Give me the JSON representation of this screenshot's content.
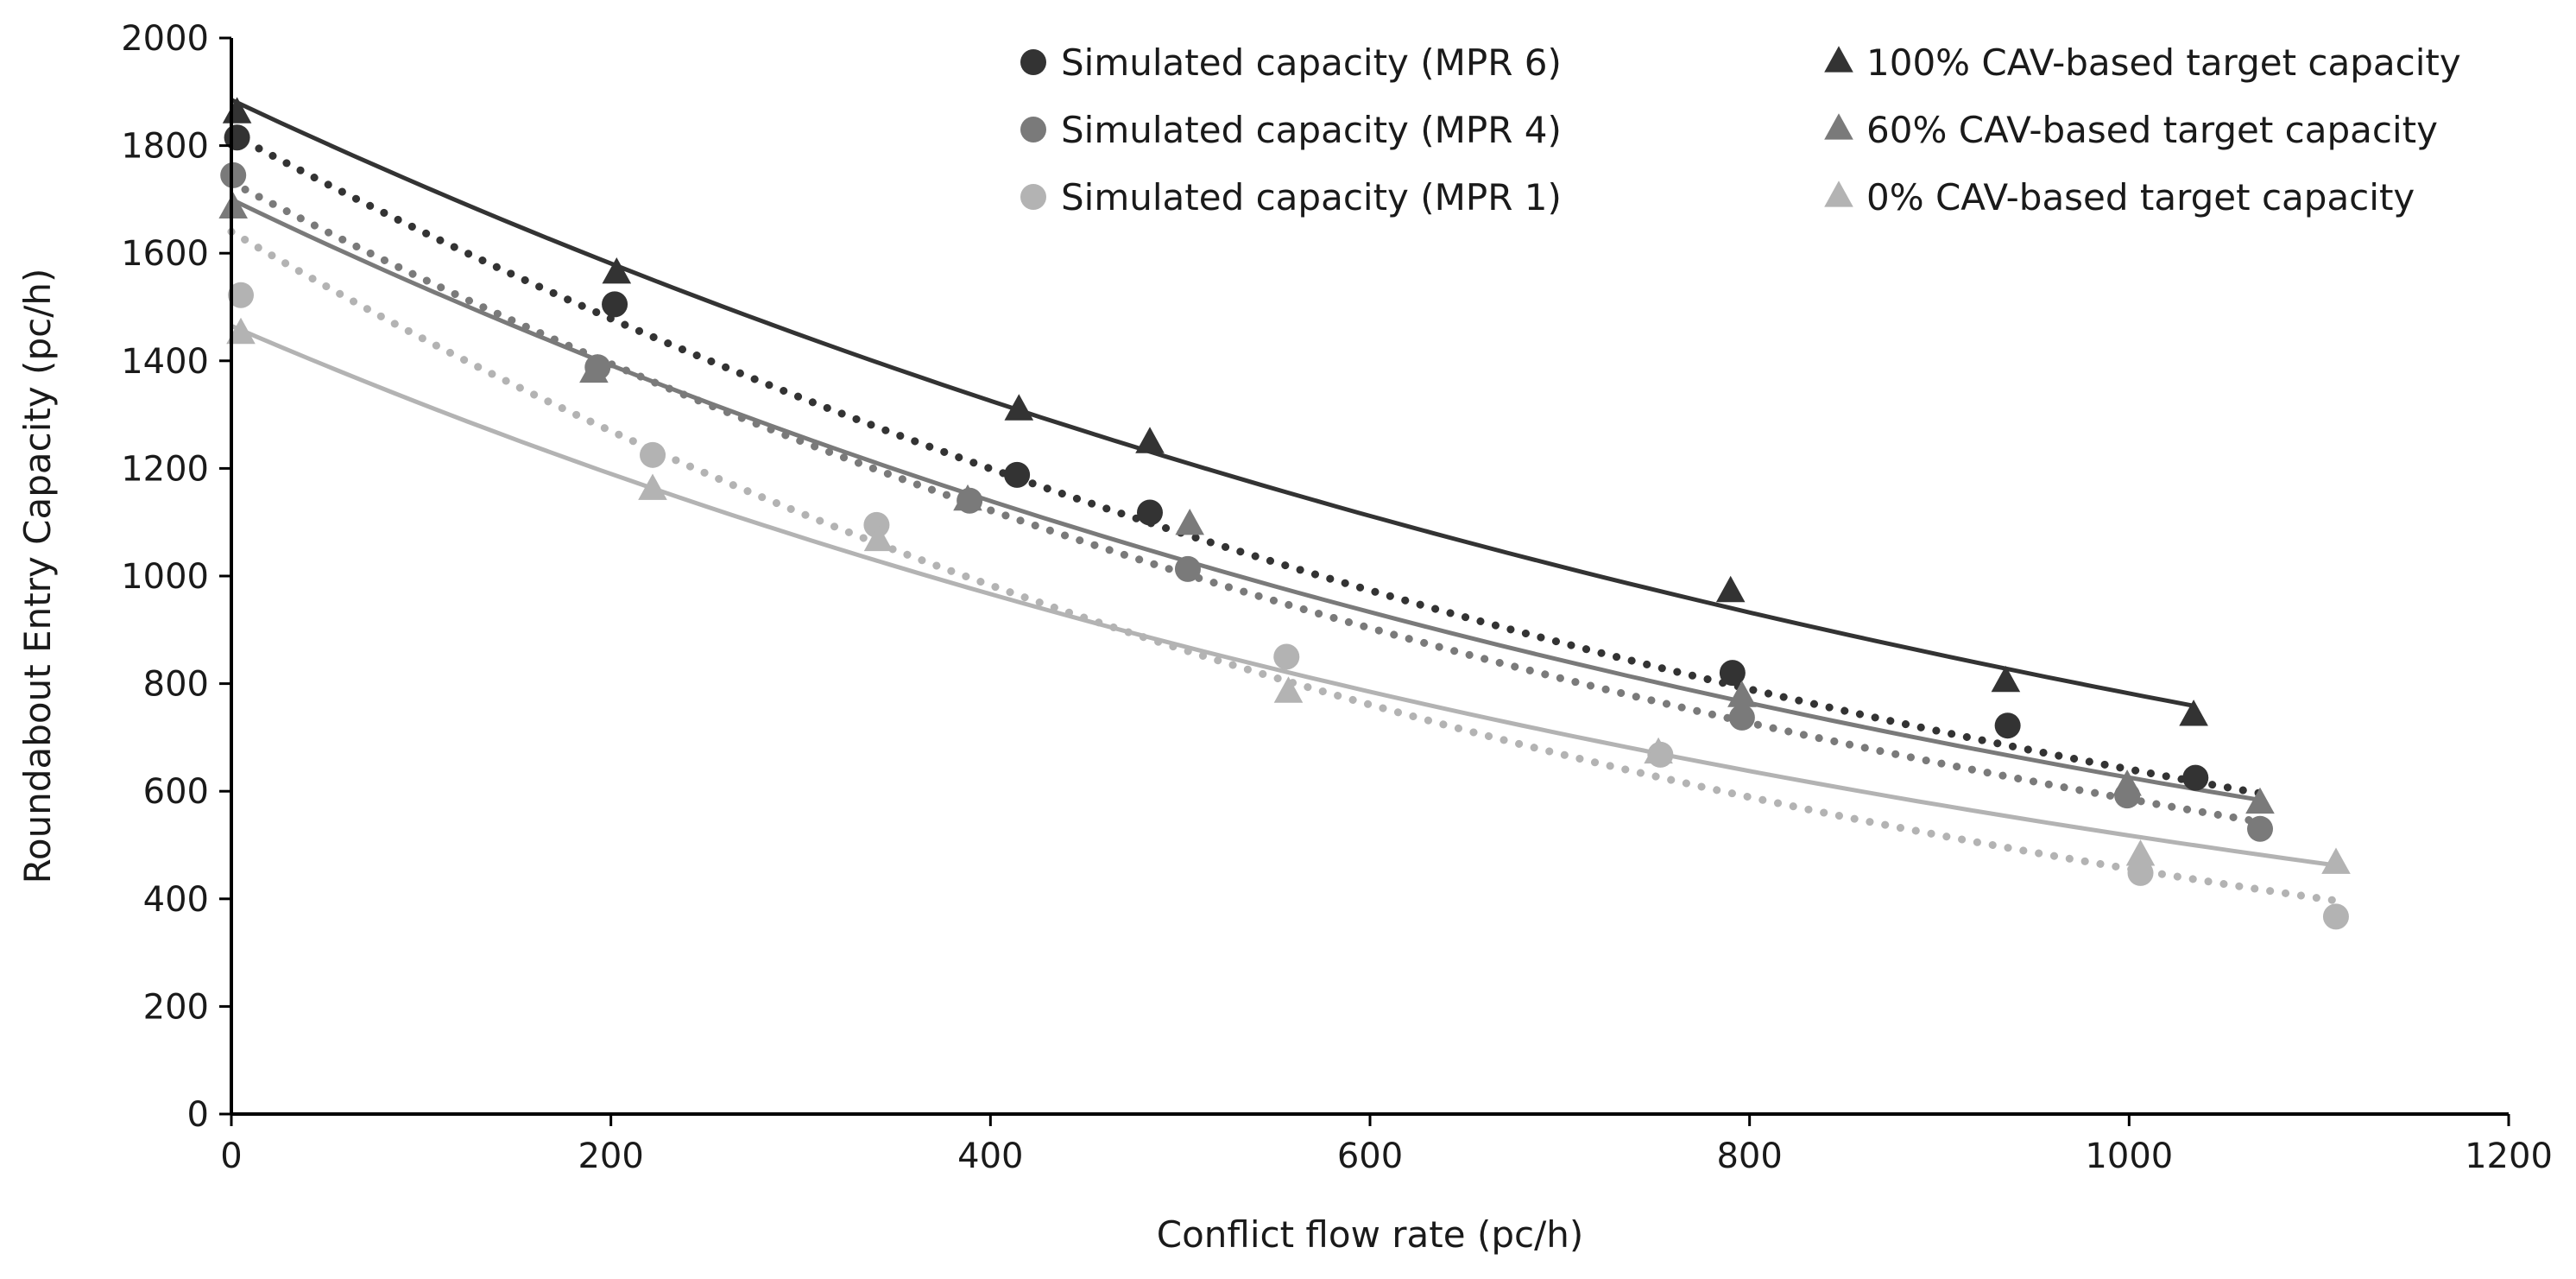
{
  "chart_data": {
    "type": "scatter",
    "title": "",
    "xlabel": "Conflict flow rate (pc/h)",
    "ylabel": "Roundabout Entry Capacity (pc/h)",
    "xlim": [
      0,
      1200
    ],
    "ylim": [
      0,
      2000
    ],
    "xticks": [
      0,
      200,
      400,
      600,
      800,
      1000,
      1200
    ],
    "yticks": [
      0,
      200,
      400,
      600,
      800,
      1000,
      1200,
      1400,
      1600,
      1800,
      2000
    ],
    "grid": false,
    "legend_position": "top-right",
    "series": [
      {
        "name": "Simulated capacity (MPR 6)",
        "marker": "circle",
        "color": "#333333",
        "points": [
          [
            3,
            1815
          ],
          [
            202,
            1505
          ],
          [
            414,
            1188
          ],
          [
            484,
            1118
          ],
          [
            791,
            820
          ],
          [
            936,
            722
          ],
          [
            1035,
            625
          ]
        ],
        "trend": {
          "style": "dotted",
          "a": 1822,
          "b": 0.001045,
          "x0": 0,
          "x1": 1070
        }
      },
      {
        "name": "Simulated capacity (MPR 4)",
        "marker": "circle",
        "color": "#7a7a7a",
        "points": [
          [
            1,
            1745
          ],
          [
            193,
            1388
          ],
          [
            389,
            1140
          ],
          [
            504,
            1013
          ],
          [
            796,
            737
          ],
          [
            999,
            592
          ],
          [
            1069,
            530
          ]
        ],
        "trend": {
          "style": "dotted",
          "a": 1732,
          "b": 0.001085,
          "x0": 0,
          "x1": 1070
        }
      },
      {
        "name": "Simulated capacity (MPR 1)",
        "marker": "circle",
        "color": "#b3b3b3",
        "points": [
          [
            5,
            1522
          ],
          [
            222,
            1225
          ],
          [
            340,
            1095
          ],
          [
            556,
            850
          ],
          [
            753,
            668
          ],
          [
            1006,
            448
          ],
          [
            1109,
            367
          ]
        ],
        "trend": {
          "style": "dotted",
          "a": 1640,
          "b": 0.00128,
          "x0": 0,
          "x1": 1110
        }
      },
      {
        "name": "100% CAV-based target capacity",
        "marker": "triangle",
        "color": "#333333",
        "points": [
          [
            3,
            1860
          ],
          [
            203,
            1562
          ],
          [
            415,
            1308
          ],
          [
            484,
            1247
          ],
          [
            790,
            970
          ],
          [
            935,
            803
          ],
          [
            1034,
            740
          ]
        ],
        "trend": {
          "style": "solid",
          "a": 1885,
          "b": 0.00088,
          "x0": 0,
          "x1": 1034
        }
      },
      {
        "name": "60% CAV-based target capacity",
        "marker": "triangle",
        "color": "#7a7a7a",
        "points": [
          [
            1,
            1683
          ],
          [
            191,
            1378
          ],
          [
            388,
            1140
          ],
          [
            505,
            1095
          ],
          [
            796,
            775
          ],
          [
            999,
            610
          ],
          [
            1069,
            577
          ]
        ],
        "trend": {
          "style": "solid",
          "a": 1700,
          "b": 0.001,
          "x0": 0,
          "x1": 1070
        }
      },
      {
        "name": "0% CAV-based target capacity",
        "marker": "triangle",
        "color": "#b3b3b3",
        "points": [
          [
            5,
            1450
          ],
          [
            222,
            1160
          ],
          [
            341,
            1065
          ],
          [
            557,
            783
          ],
          [
            752,
            670
          ],
          [
            1006,
            480
          ],
          [
            1109,
            465
          ]
        ],
        "trend": {
          "style": "solid",
          "a": 1465,
          "b": 0.00104,
          "x0": 0,
          "x1": 1110
        }
      }
    ]
  }
}
